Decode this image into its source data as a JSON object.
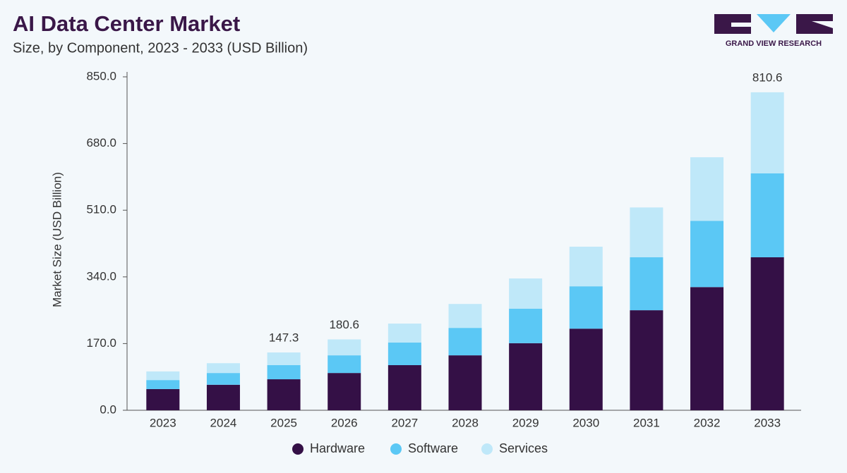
{
  "brand": "GRAND VIEW RESEARCH",
  "chart_data": {
    "type": "stacked_bar",
    "title": "AI Data Center Market",
    "subtitle": "Size, by Component, 2023 - 2033 (USD Billion)",
    "y_label": "Market Size (USD Billion)",
    "categories": [
      "2023",
      "2024",
      "2025",
      "2026",
      "2027",
      "2028",
      "2029",
      "2030",
      "2031",
      "2032",
      "2033"
    ],
    "series": [
      {
        "name": "Hardware",
        "color": "#341046",
        "values": [
          54,
          65,
          79,
          95,
          115,
          140,
          171,
          208,
          255,
          314,
          390
        ]
      },
      {
        "name": "Software",
        "color": "#5bc8f5",
        "values": [
          23,
          30,
          36,
          45,
          57.5,
          70,
          88,
          108,
          135,
          169,
          214
        ]
      },
      {
        "name": "Services",
        "color": "#bfe8f9",
        "values": [
          22,
          25,
          32.3,
          40.6,
          48.5,
          61,
          77,
          101,
          127,
          162,
          206.6
        ]
      }
    ],
    "annotations": [
      {
        "x": "2025",
        "value": 147.3
      },
      {
        "x": "2026",
        "value": 180.6
      },
      {
        "x": "2033",
        "value": 810.6
      }
    ],
    "ylim": [
      0,
      850
    ],
    "yticks": [
      {
        "value": 0,
        "label": "0.0"
      },
      {
        "value": 170,
        "label": "170.0"
      },
      {
        "value": 340,
        "label": "340.0"
      },
      {
        "value": 510,
        "label": "510.0"
      },
      {
        "value": 680,
        "label": "680.0"
      },
      {
        "value": 850,
        "label": "850.0"
      }
    ],
    "grid": false,
    "legend": "bottom"
  }
}
